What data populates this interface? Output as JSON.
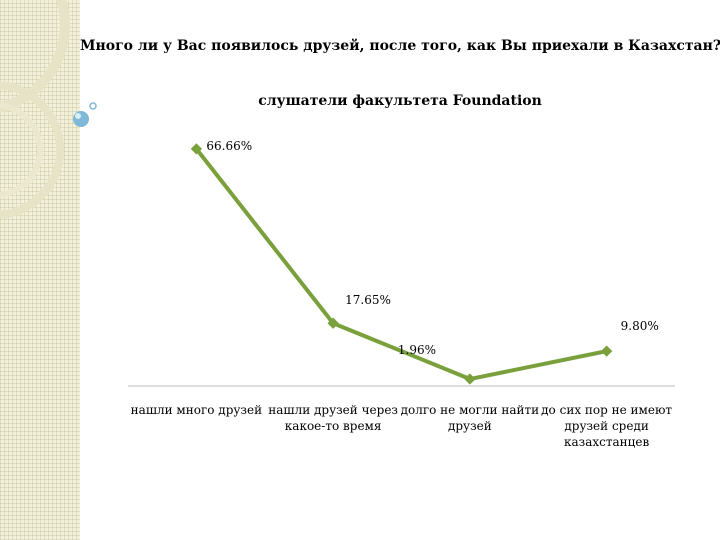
{
  "chart_data": {
    "type": "line",
    "title": "Много ли у Вас появилось друзей, после того, как Вы приехали в Казахстан?",
    "subtitle": "слушатели факультета Foundation",
    "categories": [
      "нашли много друзей",
      "нашли друзей через какое-то время",
      "долго не могли найти друзей",
      "до сих пор не имеют друзей среди казахстанцев"
    ],
    "series": [
      {
        "values": [
          66.66,
          17.65,
          1.96,
          9.8
        ],
        "labels": [
          "66.66%",
          "17.65%",
          "1.96%",
          "9.80%"
        ],
        "color": "#7aa03c"
      }
    ],
    "ylim": [
      0,
      70
    ],
    "grid": false,
    "legend": "none"
  },
  "decor": {
    "panel_color": "#f3f1dc",
    "ring_color": "#e0ddc0",
    "bubble_color": "#7fb8d8"
  }
}
